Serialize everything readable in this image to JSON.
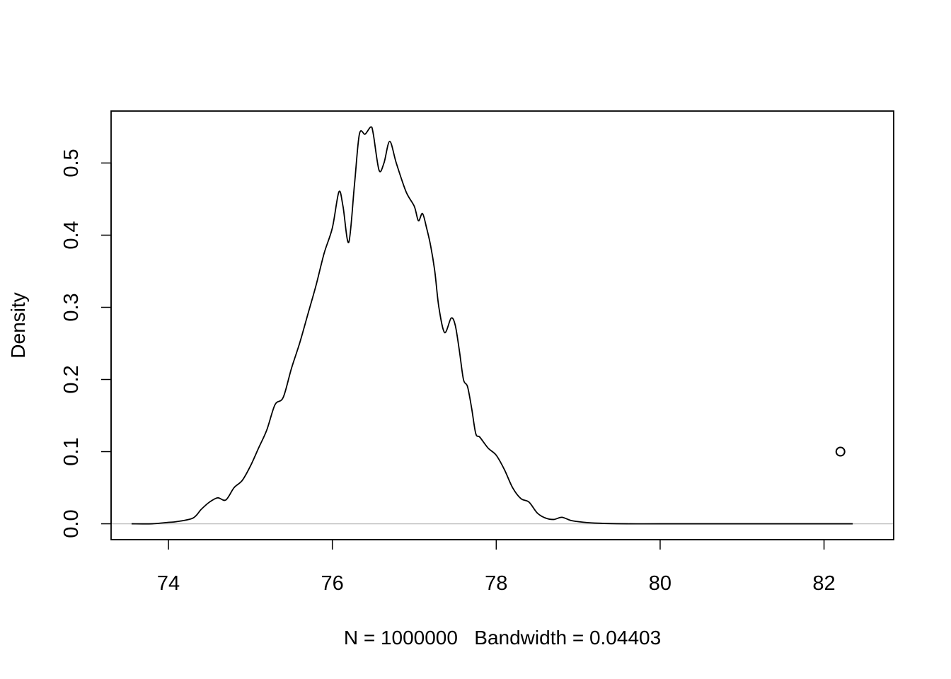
{
  "chart_data": {
    "type": "line",
    "title": "",
    "xlabel": "N = 1000000   Bandwidth = 0.04403",
    "ylabel": "Density",
    "xlim": [
      73.3,
      82.85
    ],
    "ylim": [
      -0.022,
      0.572
    ],
    "grid": false,
    "x_ticks": [
      74,
      76,
      78,
      80,
      82
    ],
    "x_tick_labels": [
      "74",
      "76",
      "78",
      "80",
      "82"
    ],
    "y_ticks": [
      0.0,
      0.1,
      0.2,
      0.3,
      0.4,
      0.5
    ],
    "y_tick_labels": [
      "0.0",
      "0.1",
      "0.2",
      "0.3",
      "0.4",
      "0.5"
    ],
    "zero_line": {
      "y": 0,
      "color": "#bebebe"
    },
    "series": [
      {
        "color": "#000000",
        "x": [
          73.55,
          73.8,
          74.0,
          74.1,
          74.3,
          74.4,
          74.5,
          74.6,
          74.7,
          74.8,
          74.9,
          75.0,
          75.1,
          75.2,
          75.3,
          75.4,
          75.5,
          75.6,
          75.7,
          75.8,
          75.9,
          76.0,
          76.08,
          76.13,
          76.2,
          76.27,
          76.33,
          76.4,
          76.47,
          76.5,
          76.57,
          76.63,
          76.7,
          76.78,
          76.9,
          77.0,
          77.05,
          77.1,
          77.15,
          77.2,
          77.25,
          77.3,
          77.37,
          77.45,
          77.5,
          77.55,
          77.6,
          77.65,
          77.7,
          77.75,
          77.8,
          77.9,
          78.0,
          78.1,
          78.2,
          78.3,
          78.4,
          78.5,
          78.6,
          78.7,
          78.8,
          78.9,
          79.0,
          79.2,
          79.6,
          80.0,
          81.0,
          82.0,
          82.35
        ],
        "y": [
          0.0,
          0.0,
          0.002,
          0.003,
          0.008,
          0.02,
          0.03,
          0.036,
          0.033,
          0.05,
          0.06,
          0.08,
          0.105,
          0.13,
          0.165,
          0.175,
          0.215,
          0.25,
          0.29,
          0.33,
          0.375,
          0.41,
          0.46,
          0.44,
          0.39,
          0.47,
          0.54,
          0.54,
          0.55,
          0.54,
          0.49,
          0.5,
          0.53,
          0.5,
          0.46,
          0.44,
          0.42,
          0.43,
          0.41,
          0.385,
          0.35,
          0.3,
          0.265,
          0.285,
          0.275,
          0.24,
          0.2,
          0.19,
          0.16,
          0.125,
          0.12,
          0.105,
          0.095,
          0.075,
          0.05,
          0.035,
          0.03,
          0.015,
          0.008,
          0.006,
          0.009,
          0.005,
          0.003,
          0.001,
          0.0,
          0.0,
          0.0,
          0.0,
          0.0
        ]
      }
    ],
    "points": [
      {
        "x": 82.2,
        "y": 0.1
      }
    ]
  }
}
